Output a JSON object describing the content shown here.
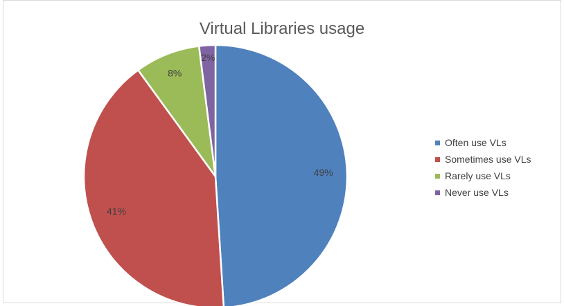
{
  "chart_data": {
    "type": "pie",
    "title": "Virtual Libraries usage",
    "slices": [
      {
        "label": "Often use VLs",
        "value": 49,
        "display": "49%",
        "color": "#4f81bd"
      },
      {
        "label": "Sometimes use VLs",
        "value": 41,
        "display": "41%",
        "color": "#c0504d"
      },
      {
        "label": "Rarely use VLs",
        "value": 8,
        "display": "8%",
        "color": "#9bbb59"
      },
      {
        "label": "Never use VLs",
        "value": 2,
        "display": "2%",
        "color": "#8064a2"
      }
    ],
    "legend_position": "right",
    "start": "12 o'clock, clockwise"
  }
}
